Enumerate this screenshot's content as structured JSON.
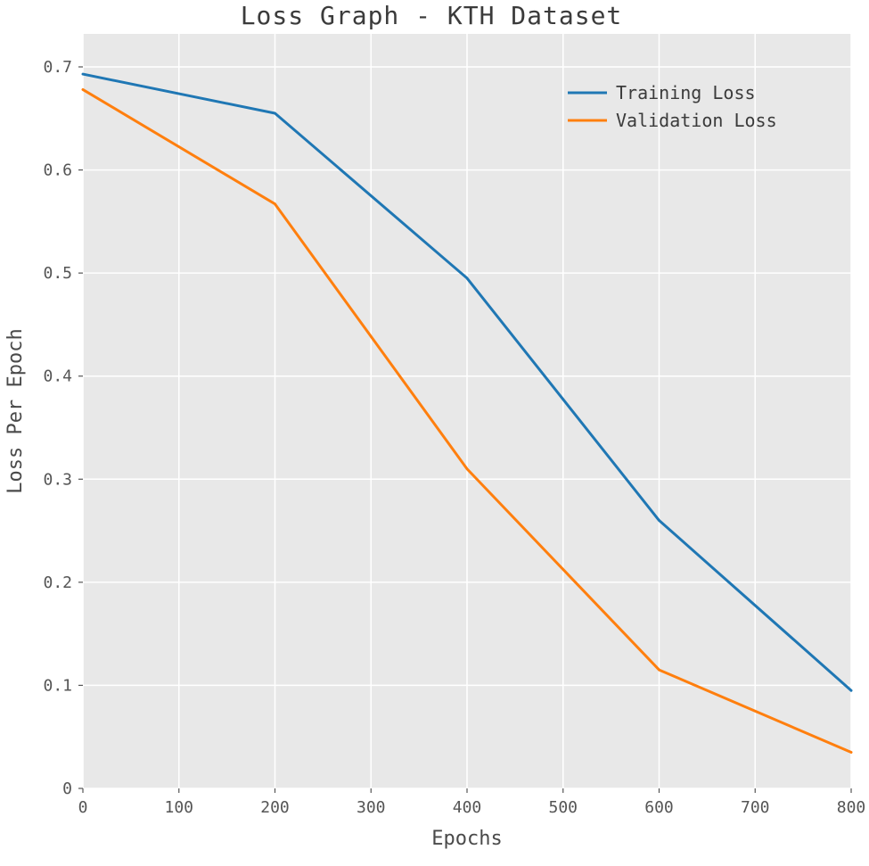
{
  "chart_data": {
    "type": "line",
    "title": "Loss Graph - KTH Dataset",
    "xlabel": "Epochs",
    "ylabel": "Loss Per Epoch",
    "x": [
      0,
      200,
      400,
      600,
      800
    ],
    "series": [
      {
        "name": "Training Loss",
        "color": "#1f77b4",
        "values": [
          0.693,
          0.655,
          0.495,
          0.26,
          0.095
        ]
      },
      {
        "name": "Validation Loss",
        "color": "#ff7f0e",
        "values": [
          0.678,
          0.567,
          0.31,
          0.115,
          0.035
        ]
      }
    ],
    "xlim": [
      0,
      800
    ],
    "ylim": [
      0,
      0.73
    ],
    "xticks": [
      0,
      100,
      200,
      300,
      400,
      500,
      600,
      700,
      800
    ],
    "yticks": [
      0,
      0.1,
      0.2,
      0.3,
      0.4,
      0.5,
      0.6,
      0.7
    ],
    "grid": true,
    "legend_position": "upper right",
    "plot_bg": "#e8e8e8",
    "grid_color": "#ffffff",
    "tick_color": "#555555",
    "line_width": 3
  }
}
